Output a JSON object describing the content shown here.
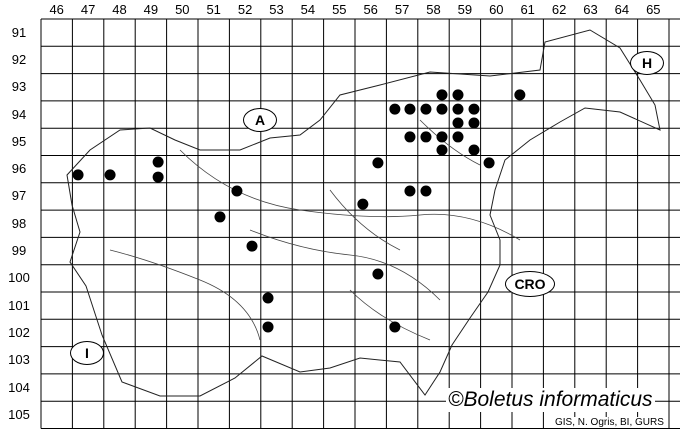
{
  "map": {
    "column_labels": [
      "46",
      "47",
      "48",
      "49",
      "50",
      "51",
      "52",
      "53",
      "54",
      "55",
      "56",
      "57",
      "58",
      "59",
      "60",
      "61",
      "62",
      "63",
      "64",
      "65"
    ],
    "row_labels": [
      "91",
      "92",
      "93",
      "94",
      "95",
      "96",
      "97",
      "98",
      "99",
      "100",
      "101",
      "102",
      "103",
      "104",
      "105"
    ],
    "country_labels": {
      "austria": "A",
      "hungary": "H",
      "croatia": "CRO",
      "italy": "I"
    },
    "copyright": "©Boletus informaticus",
    "credit": "GIS, N. Ogris, BI, GURS",
    "dot_color": "#000000",
    "records": [
      [
        47.18,
        96.71
      ],
      [
        48.2,
        96.71
      ],
      [
        49.73,
        96.24
      ],
      [
        49.73,
        96.79
      ],
      [
        52.24,
        97.3
      ],
      [
        51.7,
        98.25
      ],
      [
        52.72,
        99.32
      ],
      [
        56.73,
        96.27
      ],
      [
        56.25,
        97.78
      ],
      [
        56.73,
        100.34
      ],
      [
        53.23,
        101.22
      ],
      [
        53.23,
        102.28
      ],
      [
        57.27,
        102.28
      ],
      [
        57.27,
        94.3
      ],
      [
        57.75,
        94.3
      ],
      [
        58.26,
        94.3
      ],
      [
        58.77,
        94.3
      ],
      [
        59.28,
        94.3
      ],
      [
        59.79,
        94.3
      ],
      [
        58.77,
        93.78
      ],
      [
        59.28,
        93.78
      ],
      [
        61.25,
        93.78
      ],
      [
        59.79,
        94.81
      ],
      [
        59.28,
        94.81
      ],
      [
        57.75,
        95.32
      ],
      [
        58.26,
        95.32
      ],
      [
        58.77,
        95.32
      ],
      [
        59.28,
        95.32
      ],
      [
        58.77,
        95.8
      ],
      [
        59.79,
        95.8
      ],
      [
        60.27,
        96.27
      ],
      [
        57.75,
        97.3
      ],
      [
        58.26,
        97.3
      ]
    ]
  }
}
